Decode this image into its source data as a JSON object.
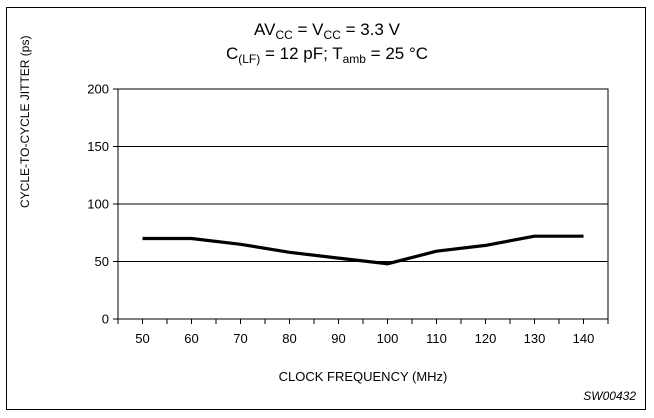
{
  "title": {
    "line1": {
      "a": "AV",
      "a_sub": "CC",
      "b": " = V",
      "b_sub": "CC",
      "c": " = 3.3 V"
    },
    "line2": {
      "a": "C",
      "a_sub": "(LF)",
      "b": " = 12 pF; T",
      "b_sub": "amb",
      "c": " = 25 °C"
    }
  },
  "figure_code": "SW00432",
  "chart_data": {
    "type": "line",
    "xlabel": "CLOCK FREQUENCY (MHz)",
    "ylabel": "CYCLE-TO-CYCLE JITTER (ps)",
    "x": [
      50,
      60,
      70,
      80,
      90,
      100,
      110,
      120,
      130,
      140
    ],
    "y_ticks": [
      0,
      50,
      100,
      150,
      200
    ],
    "ylim": [
      0,
      200
    ],
    "xlim": [
      45,
      145
    ],
    "grid": "horizontal",
    "series": [
      {
        "values": [
          70,
          70,
          65,
          58,
          53,
          48,
          59,
          64,
          72,
          72
        ]
      }
    ],
    "line_color": "#000000"
  }
}
